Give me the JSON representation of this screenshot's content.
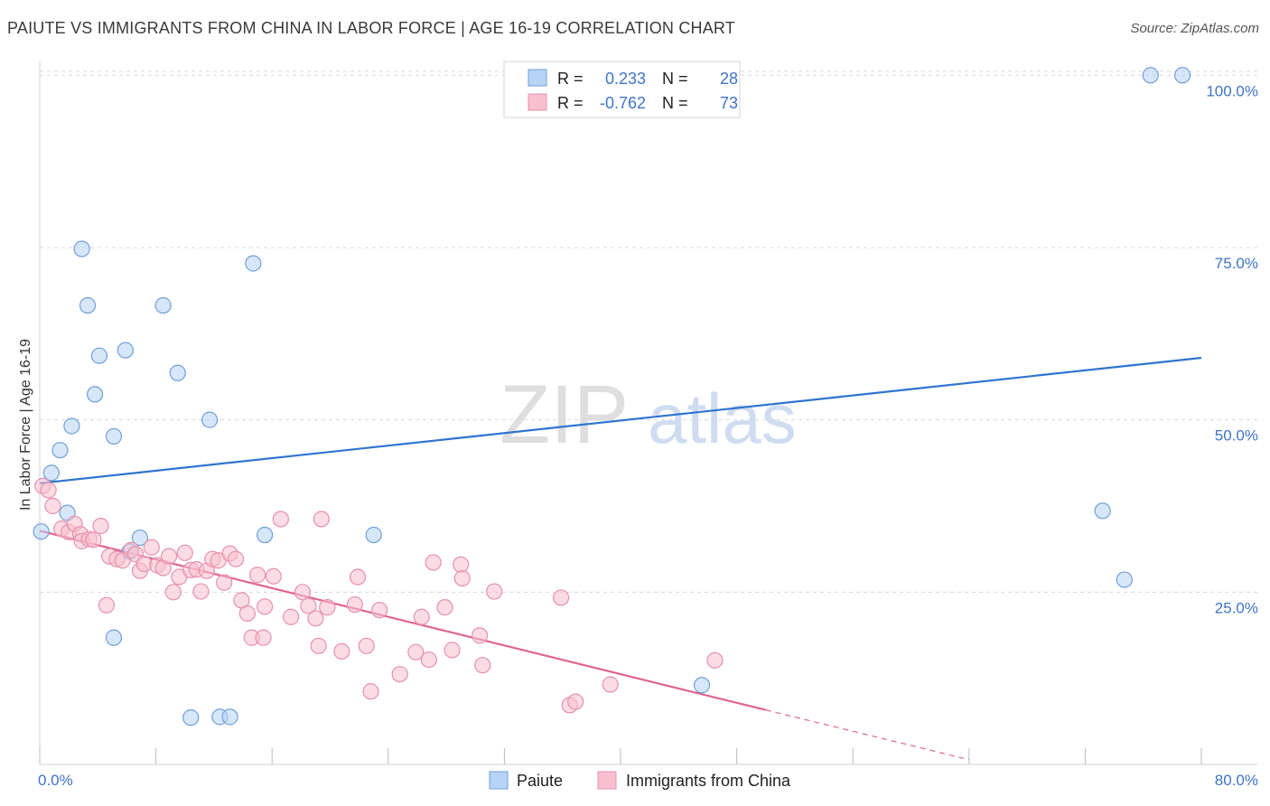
{
  "header": {
    "title": "PAIUTE VS IMMIGRANTS FROM CHINA IN LABOR FORCE | AGE 16-19 CORRELATION CHART",
    "source": "Source: ZipAtlas.com"
  },
  "watermark": {
    "part1": "ZIP",
    "part2": "atlas"
  },
  "colors": {
    "paiute_fill": "#b7d3f5",
    "paiute_stroke": "#6f9fd8",
    "paiute_line": "#2f74d0",
    "china_fill": "#f8c0d0",
    "china_stroke": "#e890ab",
    "china_line": "#e0648e",
    "axis_text": "#3f74c9",
    "grid": "#d8d8d8"
  },
  "chart_data": {
    "type": "scatter",
    "title": "PAIUTE VS IMMIGRANTS FROM CHINA IN LABOR FORCE | AGE 16-19 CORRELATION CHART",
    "xlabel": "",
    "ylabel": "In Labor Force | Age 16-19",
    "xlim": [
      0,
      80
    ],
    "ylim": [
      0,
      102
    ],
    "x_tick_labels": {
      "min": "0.0%",
      "max": "80.0%"
    },
    "y_ticks": [
      {
        "value": 25,
        "label": "25.0%"
      },
      {
        "value": 50,
        "label": "50.0%"
      },
      {
        "value": 75,
        "label": "75.0%"
      },
      {
        "value": 100,
        "label": "100.0%"
      }
    ],
    "legend_position": "top-center",
    "stats": [
      {
        "r_label": "R =",
        "r_value": "0.233",
        "n_label": "N =",
        "n_value": "28"
      },
      {
        "r_label": "R =",
        "r_value": "-0.762",
        "n_label": "N =",
        "n_value": "73"
      }
    ],
    "bottom_legend": [
      "Paiute",
      "Immigrants from China"
    ],
    "series": [
      {
        "name": "Paiute",
        "trend": {
          "x": [
            0,
            80
          ],
          "y": [
            40.8,
            59.0
          ],
          "dashed_to": null
        },
        "points": [
          [
            0.1,
            33.8
          ],
          [
            0.8,
            42.3
          ],
          [
            1.4,
            45.6
          ],
          [
            1.9,
            36.5
          ],
          [
            2.2,
            49.1
          ],
          [
            2.9,
            74.8
          ],
          [
            3.3,
            66.6
          ],
          [
            3.8,
            53.7
          ],
          [
            4.1,
            59.3
          ],
          [
            5.1,
            47.6
          ],
          [
            5.9,
            60.1
          ],
          [
            6.2,
            30.9
          ],
          [
            6.9,
            32.9
          ],
          [
            5.1,
            18.4
          ],
          [
            8.5,
            66.6
          ],
          [
            9.5,
            56.8
          ],
          [
            11.7,
            50.0
          ],
          [
            14.7,
            72.7
          ],
          [
            15.5,
            33.3
          ],
          [
            23.0,
            33.3
          ],
          [
            10.4,
            6.8
          ],
          [
            12.4,
            6.9
          ],
          [
            13.1,
            6.9
          ],
          [
            45.6,
            11.5
          ],
          [
            76.5,
            100.0
          ],
          [
            78.7,
            100.0
          ],
          [
            73.2,
            36.8
          ],
          [
            74.7,
            26.8
          ]
        ]
      },
      {
        "name": "Immigrants from China",
        "trend": {
          "x": [
            0,
            50
          ],
          "y": [
            33.9,
            7.9
          ],
          "dashed_to": [
            64,
            0.7
          ]
        },
        "points": [
          [
            0.2,
            40.4
          ],
          [
            0.6,
            39.8
          ],
          [
            0.9,
            37.5
          ],
          [
            1.5,
            34.2
          ],
          [
            2.0,
            33.7
          ],
          [
            2.4,
            34.9
          ],
          [
            2.8,
            33.4
          ],
          [
            2.9,
            32.4
          ],
          [
            3.4,
            32.7
          ],
          [
            3.7,
            32.6
          ],
          [
            4.2,
            34.6
          ],
          [
            4.6,
            23.1
          ],
          [
            4.8,
            30.2
          ],
          [
            5.3,
            29.8
          ],
          [
            5.7,
            29.6
          ],
          [
            6.3,
            31.1
          ],
          [
            6.6,
            30.5
          ],
          [
            6.9,
            28.1
          ],
          [
            7.2,
            29.1
          ],
          [
            7.7,
            31.5
          ],
          [
            8.1,
            28.9
          ],
          [
            8.5,
            28.5
          ],
          [
            8.9,
            30.2
          ],
          [
            9.2,
            25.0
          ],
          [
            9.6,
            27.2
          ],
          [
            10.0,
            30.7
          ],
          [
            10.4,
            28.2
          ],
          [
            10.8,
            28.3
          ],
          [
            11.1,
            25.1
          ],
          [
            11.5,
            28.1
          ],
          [
            11.9,
            29.8
          ],
          [
            12.3,
            29.6
          ],
          [
            12.7,
            26.4
          ],
          [
            13.1,
            30.6
          ],
          [
            13.5,
            29.8
          ],
          [
            13.9,
            23.8
          ],
          [
            14.3,
            21.9
          ],
          [
            14.6,
            18.4
          ],
          [
            15.0,
            27.5
          ],
          [
            15.4,
            18.4
          ],
          [
            15.5,
            22.9
          ],
          [
            16.1,
            27.3
          ],
          [
            16.6,
            35.6
          ],
          [
            17.3,
            21.4
          ],
          [
            18.1,
            25.0
          ],
          [
            18.5,
            23.0
          ],
          [
            19.0,
            21.2
          ],
          [
            19.2,
            17.2
          ],
          [
            19.4,
            35.6
          ],
          [
            19.8,
            22.8
          ],
          [
            20.8,
            16.4
          ],
          [
            21.7,
            23.2
          ],
          [
            21.9,
            27.2
          ],
          [
            22.5,
            17.2
          ],
          [
            22.8,
            10.6
          ],
          [
            23.4,
            22.4
          ],
          [
            24.8,
            13.1
          ],
          [
            25.9,
            16.3
          ],
          [
            26.3,
            21.4
          ],
          [
            26.8,
            15.2
          ],
          [
            27.1,
            29.3
          ],
          [
            27.9,
            22.8
          ],
          [
            28.4,
            16.6
          ],
          [
            29.0,
            29.0
          ],
          [
            29.1,
            27.0
          ],
          [
            30.3,
            18.7
          ],
          [
            30.5,
            14.4
          ],
          [
            31.3,
            25.1
          ],
          [
            35.9,
            24.2
          ],
          [
            36.5,
            8.6
          ],
          [
            36.9,
            9.1
          ],
          [
            39.3,
            11.6
          ],
          [
            46.5,
            15.1
          ]
        ]
      }
    ]
  }
}
